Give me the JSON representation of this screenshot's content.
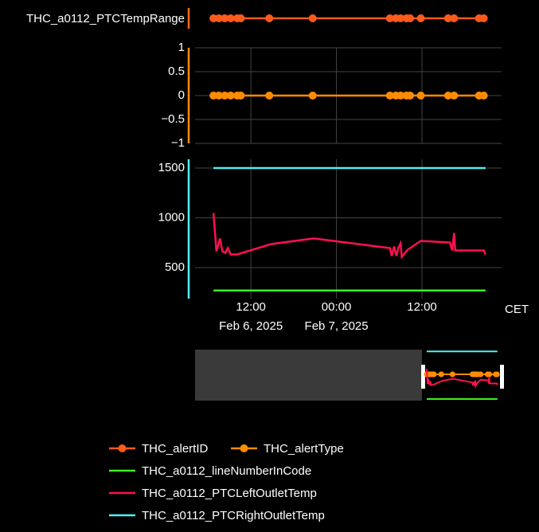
{
  "chart_data": [
    {
      "type": "line",
      "ylabel": "THC_a0112_PTCTempRange",
      "axis_color": "#ff6a13",
      "ylim": [
        -1,
        1
      ],
      "grid": false,
      "series": [
        {
          "name": "THC_alertID",
          "color": "#ff5a1a",
          "markers": true,
          "x": [
            "2025-02-06 06:45",
            "2025-02-06 07:30",
            "2025-02-06 08:20",
            "2025-02-06 09:10",
            "2025-02-06 10:05",
            "2025-02-06 10:35",
            "2025-02-06 14:35",
            "2025-02-06 20:40",
            "2025-02-07 07:30",
            "2025-02-07 08:20",
            "2025-02-07 09:00",
            "2025-02-07 09:50",
            "2025-02-07 10:20",
            "2025-02-07 11:50",
            "2025-02-07 15:40",
            "2025-02-07 16:30",
            "2025-02-07 20:00",
            "2025-02-07 20:40"
          ],
          "values": [
            0,
            0,
            0,
            0,
            0,
            0,
            0,
            0,
            0,
            0,
            0,
            0,
            0,
            0,
            0,
            0,
            0,
            0
          ]
        }
      ]
    },
    {
      "type": "line",
      "axis_color": "#ff8c00",
      "ylim": [
        -1,
        1
      ],
      "grid": true,
      "yticks": [
        1,
        0.5,
        0,
        {
          "value": -0.5,
          "label": "−0.5"
        },
        {
          "value": -1,
          "label": "−1"
        }
      ],
      "series": [
        {
          "name": "THC_alertType",
          "color": "#ff8c00",
          "markers": true,
          "x": [
            "2025-02-06 06:45",
            "2025-02-06 07:30",
            "2025-02-06 08:20",
            "2025-02-06 09:10",
            "2025-02-06 10:05",
            "2025-02-06 10:35",
            "2025-02-06 14:35",
            "2025-02-06 20:40",
            "2025-02-07 07:30",
            "2025-02-07 08:20",
            "2025-02-07 09:00",
            "2025-02-07 09:50",
            "2025-02-07 10:20",
            "2025-02-07 11:50",
            "2025-02-07 15:40",
            "2025-02-07 16:30",
            "2025-02-07 20:00",
            "2025-02-07 20:40"
          ],
          "values": [
            0,
            0,
            0,
            0,
            0,
            0,
            0,
            0,
            0,
            0,
            0,
            0,
            0,
            0,
            0,
            0,
            0,
            0
          ]
        }
      ]
    },
    {
      "type": "line",
      "axis_color": "#4ff0f0",
      "ylim": [
        188,
        1588
      ],
      "grid": true,
      "yticks": [
        500,
        1000,
        1500
      ],
      "xlim": [
        "2025-02-06 04:10",
        "2025-02-07 23:10"
      ],
      "xlabel": "CET",
      "xticks": [
        {
          "value": "2025-02-06 12:00",
          "label": "12:00",
          "date_label": "Feb 6, 2025"
        },
        {
          "value": "2025-02-07 00:00",
          "label": "00:00",
          "date_label": "Feb 7, 2025"
        },
        {
          "value": "2025-02-07 12:00",
          "label": "12:00"
        }
      ],
      "series": [
        {
          "name": "THC_a0112_lineNumberInCode",
          "color": "#3fef1f",
          "markers": false,
          "x": [
            "2025-02-06 06:45",
            "2025-02-07 20:55"
          ],
          "values": [
            270,
            270
          ]
        },
        {
          "name": "THC_a0112_PTCLeftOutletTemp",
          "color": "#ff1050",
          "markers": false,
          "x": [
            "2025-02-06 06:45",
            "2025-02-06 07:10",
            "2025-02-06 07:40",
            "2025-02-06 08:00",
            "2025-02-06 08:25",
            "2025-02-06 08:45",
            "2025-02-06 09:10",
            "2025-02-06 10:05",
            "2025-02-06 14:50",
            "2025-02-06 20:40",
            "2025-02-06 20:55",
            "2025-02-07 07:30",
            "2025-02-07 07:45",
            "2025-02-07 08:05",
            "2025-02-07 08:25",
            "2025-02-07 08:40",
            "2025-02-07 09:00",
            "2025-02-07 09:10",
            "2025-02-07 10:00",
            "2025-02-07 11:50",
            "2025-02-07 15:55",
            "2025-02-07 16:15",
            "2025-02-07 16:30",
            "2025-02-07 16:40",
            "2025-02-07 20:40",
            "2025-02-07 20:55"
          ],
          "values": [
            1048,
            664,
            792,
            664,
            648,
            696,
            632,
            632,
            736,
            792,
            792,
            696,
            616,
            712,
            616,
            696,
            744,
            608,
            680,
            768,
            752,
            672,
            848,
            672,
            672,
            632
          ]
        },
        {
          "name": "THC_a0112_PTCRightOutletTemp",
          "color": "#4ff0f0",
          "markers": false,
          "x": [
            "2025-02-06 06:45",
            "2025-02-07 20:55"
          ],
          "values": [
            1500,
            1500
          ]
        }
      ]
    }
  ]
}
